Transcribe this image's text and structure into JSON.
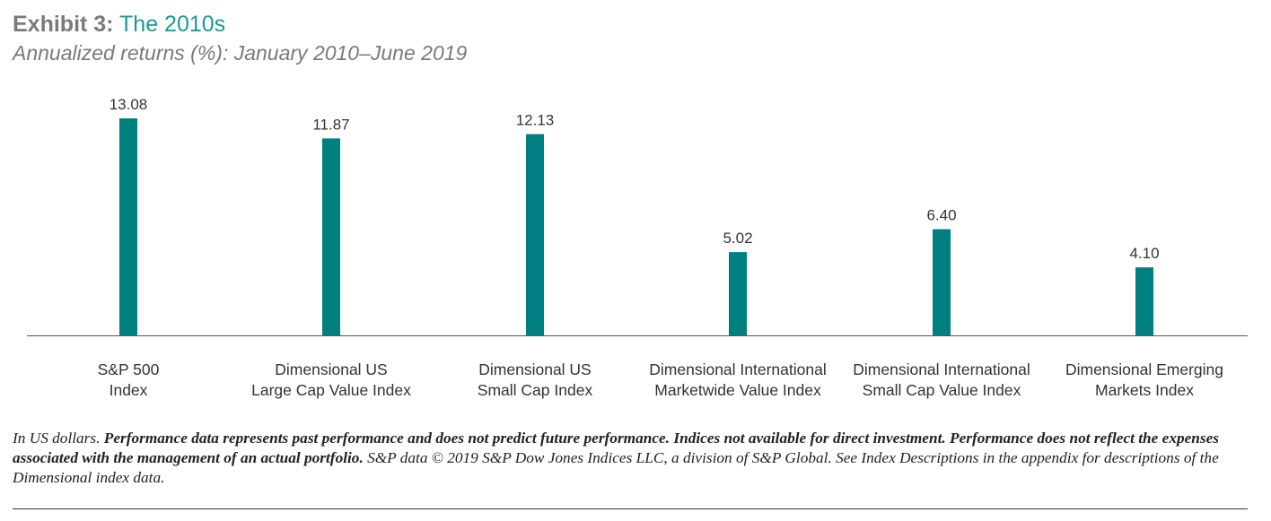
{
  "header": {
    "prefix": "Exhibit 3:",
    "title": "The 2010s",
    "subtitle": "Annualized returns (%): January 2010–June 2019"
  },
  "chart_data": {
    "type": "bar",
    "categories": [
      [
        "S&P 500",
        "Index"
      ],
      [
        "Dimensional US",
        "Large Cap Value Index"
      ],
      [
        "Dimensional US",
        "Small Cap Index"
      ],
      [
        "Dimensional International",
        "Marketwide Value Index"
      ],
      [
        "Dimensional International",
        "Small Cap Value Index"
      ],
      [
        "Dimensional Emerging",
        "Markets Index"
      ]
    ],
    "values": [
      13.08,
      11.87,
      12.13,
      5.02,
      6.4,
      4.1
    ],
    "value_labels": [
      "13.08",
      "11.87",
      "12.13",
      "5.02",
      "6.40",
      "4.10"
    ],
    "ylim": [
      0,
      13.08
    ],
    "grid": false,
    "bar_color": "#007f80"
  },
  "footnote": {
    "lead": "In US dollars. ",
    "bold": "Performance data represents past performance and does not predict future performance. Indices not available for direct investment. Performance does not reflect the expenses associated with the management of an actual portfolio.",
    "tail": " S&P data © 2019 S&P Dow Jones Indices LLC, a division of S&P Global. See Index Descriptions in the appendix for descriptions of the Dimensional index data."
  }
}
